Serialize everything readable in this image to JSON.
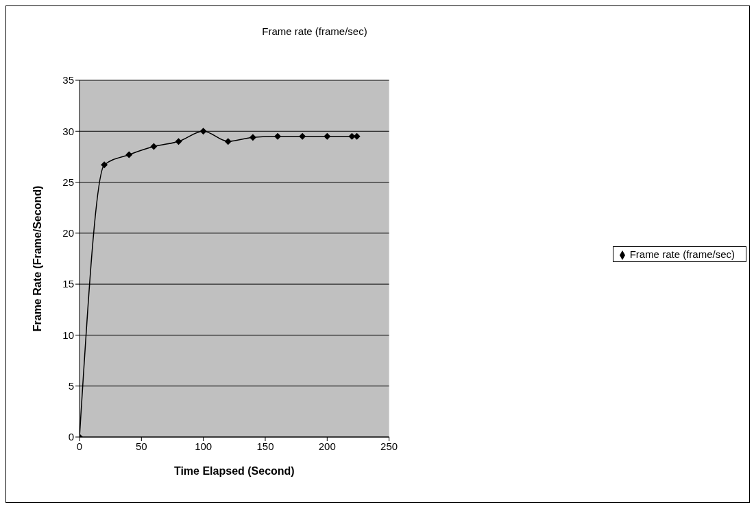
{
  "chart_data": {
    "type": "line",
    "title": "Frame rate (frame/sec)",
    "xlabel": "Time Elapsed (Second)",
    "ylabel": "Frame Rate (Frame/Second)",
    "x": [
      0,
      20,
      40,
      60,
      80,
      100,
      120,
      140,
      160,
      180,
      200,
      220,
      224
    ],
    "series": [
      {
        "name": "Frame rate (frame/sec)",
        "color": "#000000",
        "values": [
          0,
          26.7,
          27.7,
          28.5,
          29.0,
          30.0,
          29.0,
          29.4,
          29.5,
          29.5,
          29.5,
          29.5,
          29.5
        ]
      }
    ],
    "xlim": [
      0,
      250
    ],
    "xticks": [
      0,
      50,
      100,
      150,
      200,
      250
    ],
    "ylim": [
      0,
      35
    ],
    "yticks": [
      0,
      5,
      10,
      15,
      20,
      25,
      30,
      35
    ],
    "grid": "y",
    "legend": "right",
    "marker": "diamond",
    "line_style": "solid"
  }
}
